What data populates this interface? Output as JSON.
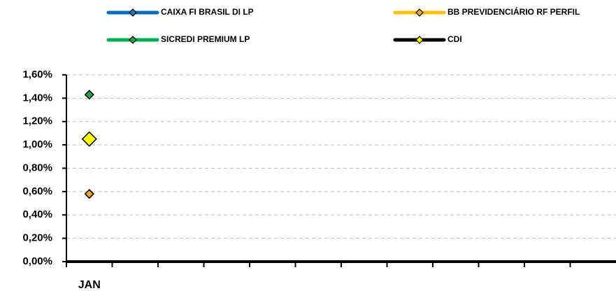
{
  "chart_data": {
    "type": "line",
    "categories": [
      "JAN",
      null,
      null,
      null,
      null,
      null,
      null,
      null,
      null,
      null,
      null,
      null
    ],
    "series": [
      {
        "name": "CAIXA FI BRASIL DI LP",
        "color": "#0070c0",
        "marker_color": "#2e75b6",
        "values": [
          0.58,
          null,
          null,
          null,
          null,
          null,
          null,
          null,
          null,
          null,
          null,
          null
        ]
      },
      {
        "name": "BB PREVIDENCIÁRIO RF PERFIL",
        "color": "#ffc000",
        "marker_color": "#f0a81e",
        "values": [
          0.58,
          null,
          null,
          null,
          null,
          null,
          null,
          null,
          null,
          null,
          null,
          null
        ]
      },
      {
        "name": "SICREDI PREMIUM LP",
        "color": "#00b050",
        "marker_color": "#23a455",
        "values": [
          1.43,
          null,
          null,
          null,
          null,
          null,
          null,
          null,
          null,
          null,
          null,
          null
        ]
      },
      {
        "name": "CDI",
        "color": "#000000",
        "marker_color": "#ffff00",
        "values": [
          1.05,
          null,
          null,
          null,
          null,
          null,
          null,
          null,
          null,
          null,
          null,
          null
        ]
      }
    ],
    "ylim": [
      0,
      1.6
    ],
    "yticks": [
      {
        "value": 0,
        "label": "0,00%"
      },
      {
        "value": 0.2,
        "label": "0,20%"
      },
      {
        "value": 0.4,
        "label": "0,40%"
      },
      {
        "value": 0.6,
        "label": "0,60%"
      },
      {
        "value": 0.8,
        "label": "0,80%"
      },
      {
        "value": 1.0,
        "label": "1,00%"
      },
      {
        "value": 1.2,
        "label": "1,20%"
      },
      {
        "value": 1.4,
        "label": "1,40%"
      },
      {
        "value": 1.6,
        "label": "1,60%"
      }
    ],
    "grid": true
  }
}
